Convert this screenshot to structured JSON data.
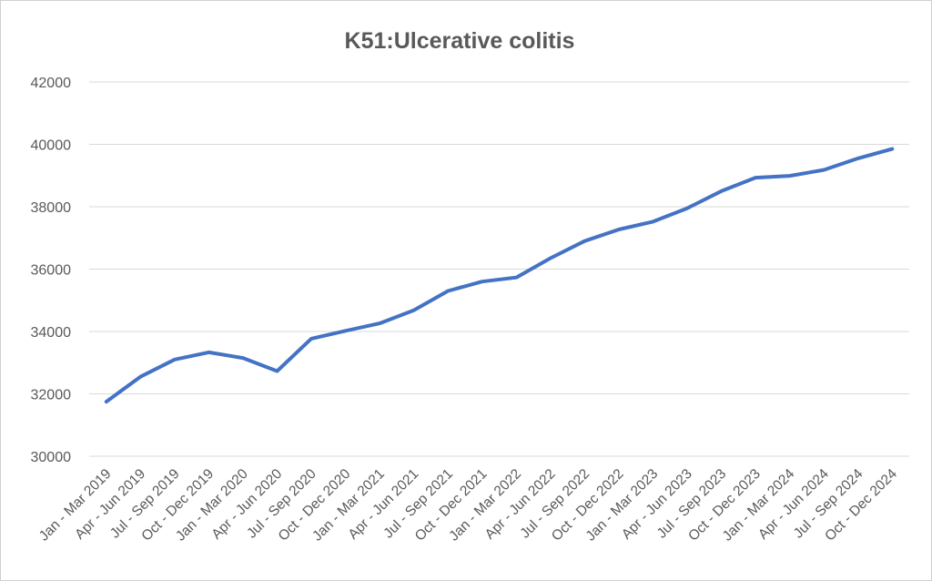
{
  "chart_data": {
    "type": "line",
    "title": "K51:Ulcerative colitis",
    "xlabel": "",
    "ylabel": "",
    "ylim": [
      30000,
      42000
    ],
    "yticks": [
      30000,
      32000,
      34000,
      36000,
      38000,
      40000,
      42000
    ],
    "grid": true,
    "legend": "none",
    "colors": {
      "series": "#4472c4",
      "grid": "#d9d9d9",
      "text": "#595959"
    },
    "categories": [
      "Jan - Mar 2019",
      "Apr - Jun 2019",
      "Jul - Sep 2019",
      "Oct - Dec 2019",
      "Jan - Mar 2020",
      "Apr - Jun 2020",
      "Jul - Sep 2020",
      "Oct - Dec 2020",
      "Jan - Mar 2021",
      "Apr - Jun 2021",
      "Jul - Sep 2021",
      "Oct - Dec 2021",
      "Jan - Mar 2022",
      "Apr - Jun 2022",
      "Jul - Sep 2022",
      "Oct - Dec 2022",
      "Jan - Mar 2023",
      "Apr - Jun 2023",
      "Jul - Sep 2023",
      "Oct - Dec 2023",
      "Jan - Mar 2024",
      "Apr - Jun 2024",
      "Jul - Sep 2024",
      "Oct - Dec 2024"
    ],
    "series": [
      {
        "values": [
          31750,
          32550,
          33100,
          33330,
          33150,
          32730,
          33770,
          34020,
          34260,
          34680,
          35300,
          35600,
          35730,
          36350,
          36900,
          37270,
          37520,
          37950,
          38500,
          38930,
          38990,
          39180,
          39550,
          39850
        ]
      }
    ]
  }
}
